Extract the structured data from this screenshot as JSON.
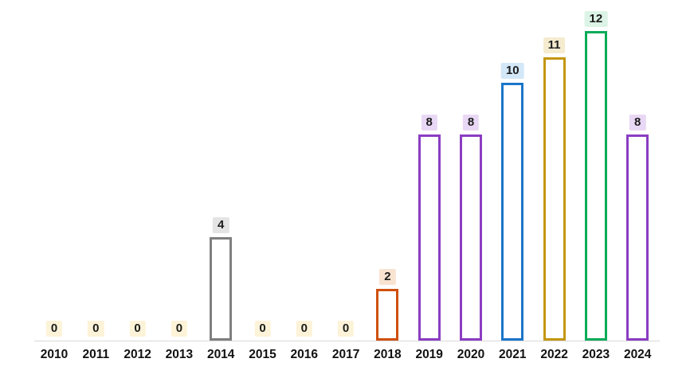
{
  "chart_data": {
    "type": "bar",
    "title": "",
    "xlabel": "",
    "ylabel": "",
    "categories": [
      "2010",
      "2011",
      "2012",
      "2013",
      "2014",
      "2015",
      "2016",
      "2017",
      "2018",
      "2019",
      "2020",
      "2021",
      "2022",
      "2023",
      "2024"
    ],
    "values": [
      0,
      0,
      0,
      0,
      4,
      0,
      0,
      0,
      2,
      8,
      8,
      10,
      11,
      12,
      8
    ],
    "bar_style": "outlined-hollow",
    "bar_colors": [
      "#fdf3d8",
      "#fdf3d8",
      "#fdf3d8",
      "#fdf3d8",
      "#7f7f7f",
      "#fdf3d8",
      "#fdf3d8",
      "#fdf3d8",
      "#d0500e",
      "#8b3dc2",
      "#8b3dc2",
      "#1a75c9",
      "#c4960f",
      "#0aab58",
      "#8b3dc2"
    ],
    "badge_colors": [
      "#fdf3d8",
      "#fdf3d8",
      "#fdf3d8",
      "#fdf3d8",
      "#e4e4e4",
      "#fdf3d8",
      "#fdf3d8",
      "#fdf3d8",
      "#f8e3d1",
      "#e9d8f5",
      "#e9d8f5",
      "#d2e7f7",
      "#f5ebcf",
      "#dcf3e5",
      "#e9d8f5"
    ],
    "label_color": "#1c1c1c",
    "axis_color": "#d9d9d9",
    "ylim": [
      0,
      12
    ],
    "grid": false,
    "legend": "none",
    "data_labels": true
  }
}
